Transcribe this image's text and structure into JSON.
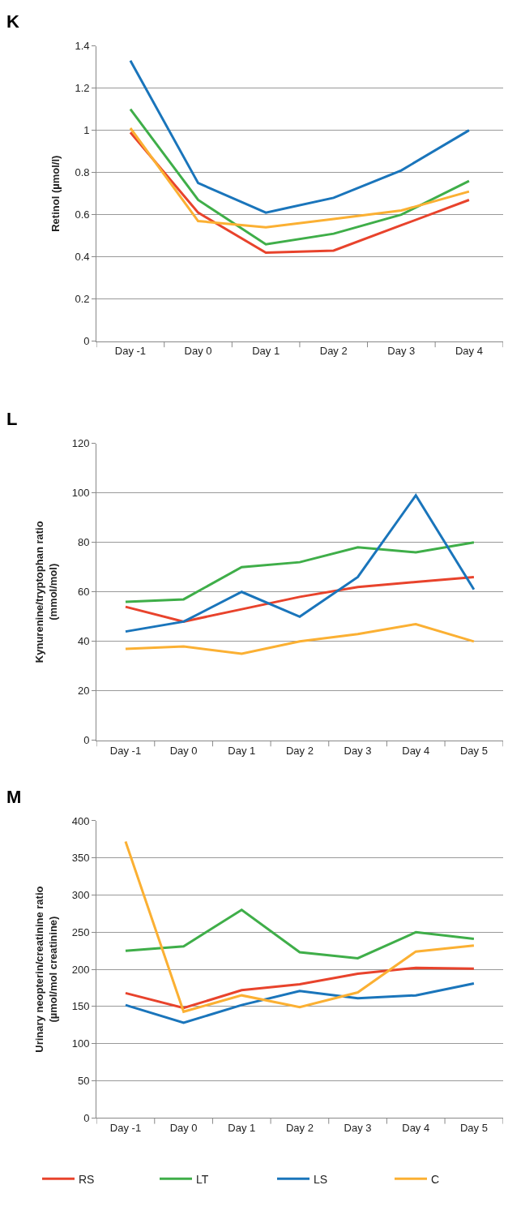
{
  "chart_data": [
    {
      "type": "line",
      "title": "K",
      "ylabel": "Retinol (µmol/l)",
      "categories": [
        "Day -1",
        "Day 0",
        "Day 1",
        "Day 2",
        "Day 3",
        "Day 4"
      ],
      "ylim": [
        0,
        1.4
      ],
      "yticks": [
        0,
        0.2,
        0.4,
        0.6,
        0.8,
        1,
        1.2,
        1.4
      ],
      "grid": "y",
      "legend": false,
      "marker": "none",
      "series": [
        {
          "color": "#e8432c",
          "values": [
            0.99,
            0.61,
            0.42,
            0.43,
            0.55,
            0.67
          ]
        },
        {
          "color": "#3fae49",
          "values": [
            1.1,
            0.67,
            0.46,
            0.51,
            0.6,
            0.76
          ]
        },
        {
          "color": "#1a75bb",
          "values": [
            1.33,
            0.75,
            0.61,
            0.68,
            0.81,
            1.0
          ]
        },
        {
          "color": "#fbb033",
          "values": [
            1.01,
            0.57,
            0.54,
            0.58,
            0.62,
            0.71
          ]
        }
      ]
    },
    {
      "type": "line",
      "title": "L",
      "ylabel": "Kynurenine/tryptophan ratio\n(mmol/mol)",
      "categories": [
        "Day -1",
        "Day 0",
        "Day 1",
        "Day 2",
        "Day 3",
        "Day 4",
        "Day 5"
      ],
      "ylim": [
        0,
        120
      ],
      "yticks": [
        0,
        20,
        40,
        60,
        80,
        100,
        120
      ],
      "grid": "y",
      "legend": false,
      "marker": "none",
      "series": [
        {
          "color": "#e8432c",
          "values": [
            54,
            48,
            53,
            58,
            62,
            64,
            66
          ]
        },
        {
          "color": "#3fae49",
          "values": [
            56,
            57,
            70,
            72,
            78,
            76,
            80
          ]
        },
        {
          "color": "#1a75bb",
          "values": [
            44,
            48,
            60,
            50,
            66,
            99,
            61
          ]
        },
        {
          "color": "#fbb033",
          "values": [
            37,
            38,
            35,
            40,
            43,
            47,
            40
          ]
        }
      ]
    },
    {
      "type": "line",
      "title": "M",
      "ylabel": "Urinary neopterin/creatinine ratio\n(µmol/mol creatinine)",
      "categories": [
        "Day -1",
        "Day 0",
        "Day 1",
        "Day 2",
        "Day 3",
        "Day 4",
        "Day 5"
      ],
      "ylim": [
        0,
        400
      ],
      "yticks": [
        0,
        50,
        100,
        150,
        200,
        250,
        300,
        350,
        400
      ],
      "grid": "y",
      "legend": "bottom",
      "marker": "none",
      "series": [
        {
          "name": "RS",
          "color": "#e8432c",
          "values": [
            168,
            148,
            172,
            180,
            194,
            202,
            201
          ]
        },
        {
          "name": "LT",
          "color": "#3fae49",
          "values": [
            225,
            231,
            280,
            223,
            215,
            250,
            241
          ]
        },
        {
          "name": "LS",
          "color": "#1a75bb",
          "values": [
            152,
            128,
            152,
            171,
            161,
            165,
            181
          ]
        },
        {
          "name": "C",
          "color": "#fbb033",
          "values": [
            372,
            143,
            165,
            149,
            169,
            224,
            232
          ]
        }
      ]
    }
  ]
}
